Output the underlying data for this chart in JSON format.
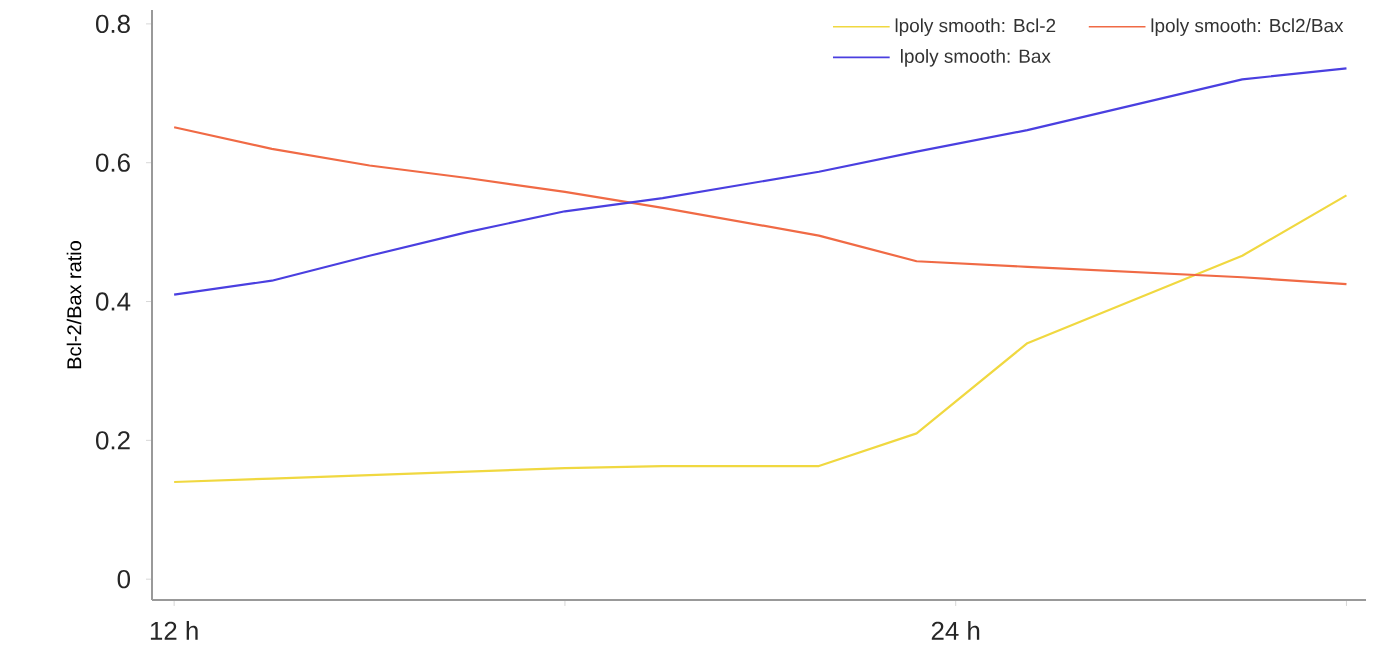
{
  "chart_data": {
    "type": "line",
    "ylabel": "Bcl-2/Bax ratio",
    "x": [
      12,
      13.5,
      15,
      16.5,
      18,
      19.5,
      21.9,
      23.4,
      25.1,
      28.4,
      30
    ],
    "series": [
      {
        "name": "lpoly smooth: Bcl-2",
        "color": "#f0d840",
        "values": [
          0.14,
          0.145,
          0.15,
          0.155,
          0.16,
          0.163,
          0.163,
          0.21,
          0.34,
          0.466,
          0.553
        ]
      },
      {
        "name": "lpoly smooth: Bcl2/Bax",
        "color": "#f06a45",
        "values": [
          0.651,
          0.62,
          0.596,
          0.578,
          0.558,
          0.535,
          0.495,
          0.458,
          0.45,
          0.435,
          0.425
        ]
      },
      {
        "name": "lpoly smooth: Bax",
        "color": "#4a3fe0",
        "values": [
          0.41,
          0.43,
          0.466,
          0.5,
          0.53,
          0.549,
          0.587,
          0.616,
          0.647,
          0.72,
          0.736
        ]
      }
    ],
    "xlim": [
      11.66,
      30.3
    ],
    "ylim": [
      -0.03,
      0.82
    ],
    "xticks": [
      {
        "value": 12,
        "label": "12 h"
      },
      {
        "value": 18,
        "label": null
      },
      {
        "value": 24,
        "label": "24 h"
      },
      {
        "value": 30,
        "label": null
      }
    ],
    "yticks": [
      0,
      0.2,
      0.4,
      0.6,
      0.8
    ],
    "grid": false,
    "legend": "top right",
    "marker": "none",
    "line_style": "solid"
  }
}
